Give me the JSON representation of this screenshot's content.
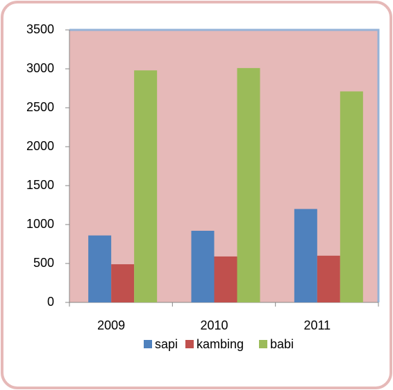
{
  "chart_data": {
    "type": "bar",
    "categories": [
      "2009",
      "2010",
      "2011"
    ],
    "series": [
      {
        "name": "sapi",
        "color": "#4f81bd",
        "values": [
          860,
          920,
          1200
        ]
      },
      {
        "name": "kambing",
        "color": "#c0504d",
        "values": [
          490,
          590,
          600
        ]
      },
      {
        "name": "babi",
        "color": "#9bbb59",
        "values": [
          2980,
          3010,
          2710
        ]
      }
    ],
    "ylim": [
      0,
      3500
    ],
    "yticks": [
      0,
      500,
      1000,
      1500,
      2000,
      2500,
      3000,
      3500
    ],
    "grid": false,
    "legend": "bottom"
  }
}
